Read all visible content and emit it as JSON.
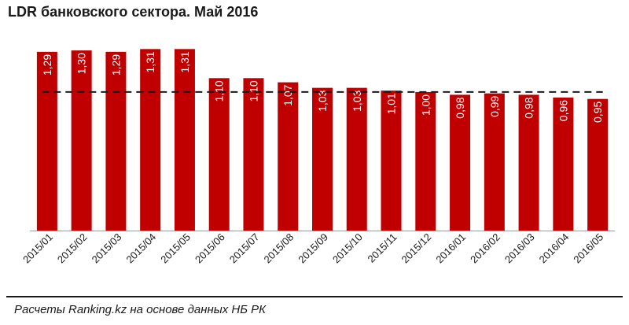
{
  "chart_data": {
    "type": "bar",
    "title": "LDR банковского  сектора. Май 2016",
    "xlabel": "",
    "ylabel": "",
    "categories": [
      "2015/01",
      "2015/02",
      "2015/03",
      "2015/04",
      "2015/05",
      "2015/06",
      "2015/07",
      "2015/08",
      "2015/09",
      "2015/10",
      "2015/11",
      "2015/12",
      "2016/01",
      "2016/02",
      "2016/03",
      "2016/04",
      "2016/05"
    ],
    "values": [
      1.29,
      1.3,
      1.29,
      1.31,
      1.31,
      1.1,
      1.1,
      1.07,
      1.03,
      1.03,
      1.01,
      1.0,
      0.98,
      0.99,
      0.98,
      0.96,
      0.95
    ],
    "data_labels": [
      "1,29",
      "1,30",
      "1,29",
      "1,31",
      "1,31",
      "1,10",
      "1,10",
      "1,07",
      "1,03",
      "1,03",
      "1,01",
      "1,00",
      "0,98",
      "0,99",
      "0,98",
      "0,96",
      "0,95"
    ],
    "reference_line": 1.0,
    "ylim": [
      0,
      1.38
    ],
    "grid": false,
    "legend": "none",
    "bar_color": "#c00000",
    "label_color": "#ffffff",
    "reference_line_color": "#1a1a1a"
  },
  "footnote": "Расчеты Ranking.kz на основе данных НБ РК"
}
